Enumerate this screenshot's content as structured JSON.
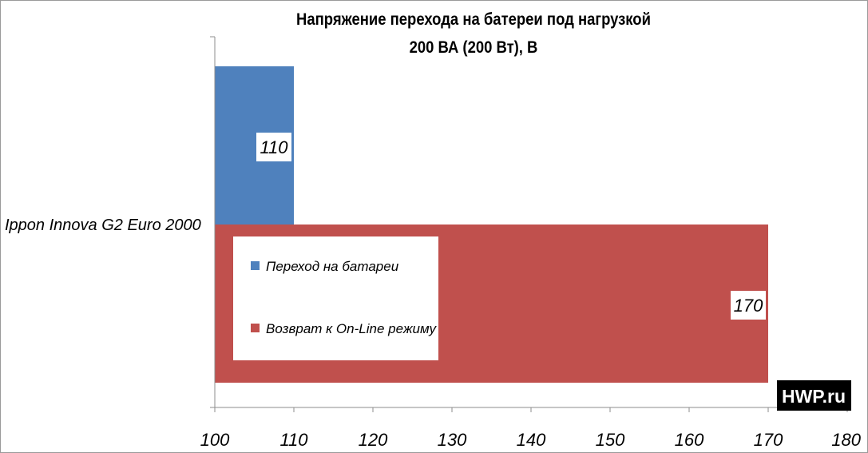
{
  "chart_data": {
    "type": "bar",
    "orientation": "horizontal",
    "title_lines": [
      "Напряжение перехода на батереи под нагрузкой",
      "200 ВА (200 Вт), В"
    ],
    "categories": [
      "Ippon Innova G2 Euro 2000"
    ],
    "series": [
      {
        "name": "Переход на батареи",
        "color": "#4f81bd",
        "values": [
          110
        ]
      },
      {
        "name": "Возврат к On-Line режиму",
        "color": "#c0504d",
        "values": [
          170
        ]
      }
    ],
    "xlim": [
      100,
      180
    ],
    "xticks": [
      "100",
      "110",
      "120",
      "130",
      "140",
      "150",
      "160",
      "170",
      "180"
    ],
    "grid": false,
    "legend_position": "inside-left"
  },
  "watermark": "HWP.ru"
}
